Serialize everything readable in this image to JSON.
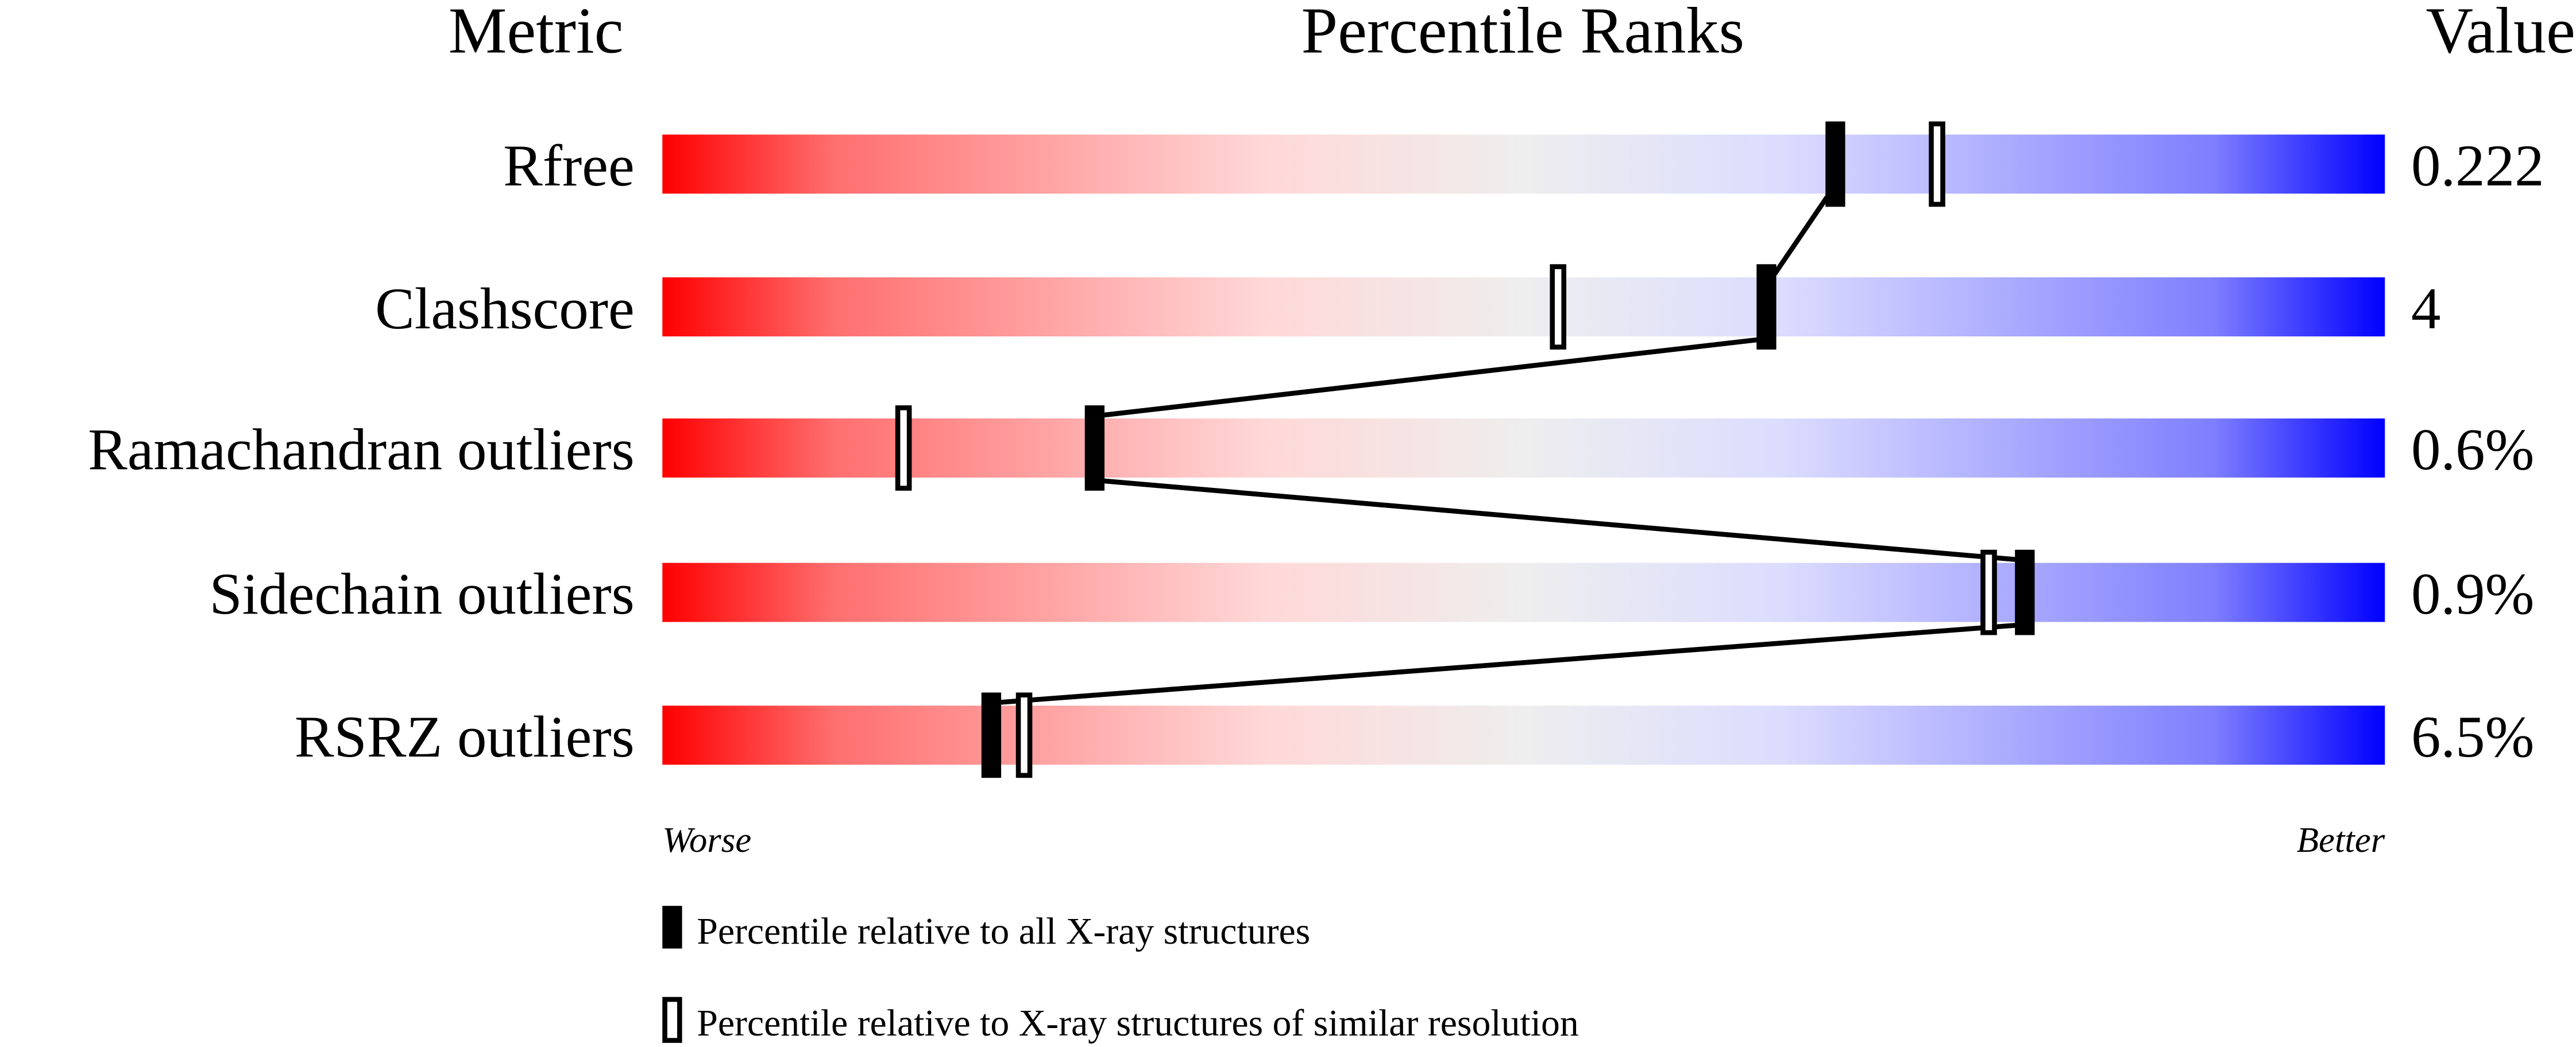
{
  "chart_data": {
    "type": "percentile-bar",
    "headers": {
      "metric": "Metric",
      "ranks": "Percentile Ranks",
      "value": "Value"
    },
    "xlim": [
      0,
      100
    ],
    "axis_labels": {
      "left": "Worse",
      "right": "Better"
    },
    "rows": [
      {
        "metric": "Rfree",
        "value": "0.222",
        "percentile_all": 68,
        "percentile_similar": 74
      },
      {
        "metric": "Clashscore",
        "value": "4",
        "percentile_all": 64,
        "percentile_similar": 52
      },
      {
        "metric": "Ramachandran outliers",
        "value": "0.6%",
        "percentile_all": 25,
        "percentile_similar": 14
      },
      {
        "metric": "Sidechain outliers",
        "value": "0.9%",
        "percentile_all": 79,
        "percentile_similar": 77
      },
      {
        "metric": "RSRZ outliers",
        "value": "6.5%",
        "percentile_all": 19,
        "percentile_similar": 21
      }
    ],
    "legend": {
      "all": "Percentile relative to all X-ray structures",
      "similar": "Percentile relative to X-ray structures of similar resolution"
    },
    "colors": {
      "worse": "#ff0000",
      "middle": "#eeeeee",
      "better": "#0000ff",
      "marker": "#000000"
    }
  }
}
